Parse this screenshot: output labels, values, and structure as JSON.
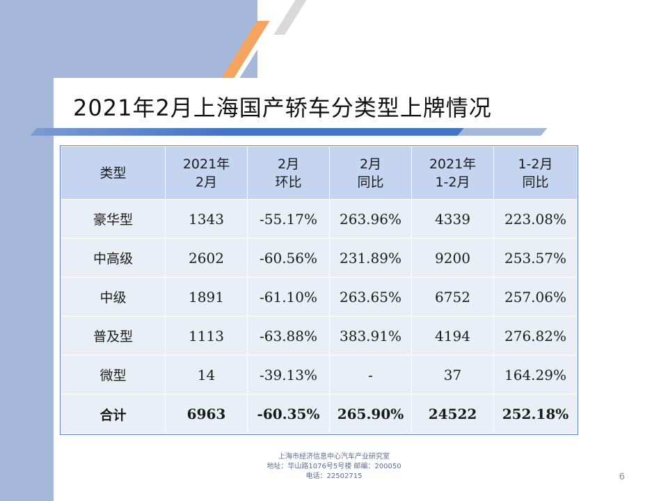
{
  "title": "2021年2月上海国产轿车分类型上牌情况",
  "table": {
    "headers": [
      "类型",
      "2021年\n2月",
      "2月\n环比",
      "2月\n同比",
      "2021年\n1-2月",
      "1-2月\n同比"
    ],
    "rows": [
      [
        "豪华型",
        "1343",
        "-55.17%",
        "263.96%",
        "4339",
        "223.08%"
      ],
      [
        "中高级",
        "2602",
        "-60.56%",
        "231.89%",
        "9200",
        "253.57%"
      ],
      [
        "中级",
        "1891",
        "-61.10%",
        "263.65%",
        "6752",
        "257.06%"
      ],
      [
        "普及型",
        "1113",
        "-63.88%",
        "383.91%",
        "4194",
        "276.82%"
      ],
      [
        "微型",
        "14",
        "-39.13%",
        "-",
        "37",
        "164.29%"
      ],
      [
        "合计",
        "6963",
        "-60.35%",
        "265.90%",
        "24522",
        "252.18%"
      ]
    ]
  },
  "footer": {
    "line1": "上海市经济信息中心汽车产业研究室",
    "line2": "地址：华山路1076号5号楼    邮编：200050",
    "line3": "电话：22502715"
  },
  "page_number": "6",
  "colors": {
    "accent_blue": "#4472c4",
    "panel_blue": "#a6b8d9",
    "header_fill": "#c5d5ef",
    "cell_fill": "#e9eef7",
    "accent_orange": "#f4a460"
  }
}
